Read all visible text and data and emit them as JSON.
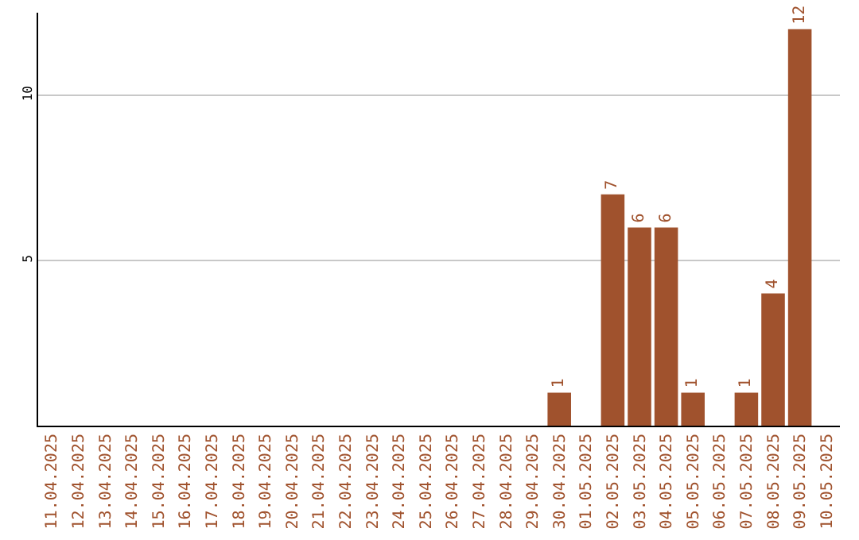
{
  "chart_data": {
    "type": "bar",
    "categories": [
      "11.04.2025",
      "12.04.2025",
      "13.04.2025",
      "14.04.2025",
      "15.04.2025",
      "16.04.2025",
      "17.04.2025",
      "18.04.2025",
      "19.04.2025",
      "20.04.2025",
      "21.04.2025",
      "22.04.2025",
      "23.04.2025",
      "24.04.2025",
      "25.04.2025",
      "26.04.2025",
      "27.04.2025",
      "28.04.2025",
      "29.04.2025",
      "30.04.2025",
      "01.05.2025",
      "02.05.2025",
      "03.05.2025",
      "04.05.2025",
      "05.05.2025",
      "06.05.2025",
      "07.05.2025",
      "08.05.2025",
      "09.05.2025",
      "10.05.2025"
    ],
    "values": [
      0,
      0,
      0,
      0,
      0,
      0,
      0,
      0,
      0,
      0,
      0,
      0,
      0,
      0,
      0,
      0,
      0,
      0,
      0,
      1,
      0,
      7,
      6,
      6,
      1,
      0,
      1,
      4,
      12,
      0
    ],
    "value_labels": [
      null,
      null,
      null,
      null,
      null,
      null,
      null,
      null,
      null,
      null,
      null,
      null,
      null,
      null,
      null,
      null,
      null,
      null,
      null,
      "1",
      null,
      "7",
      "6",
      "6",
      "1",
      null,
      "1",
      "4",
      "12",
      null
    ],
    "color": "#a0522d",
    "ylim": [
      0,
      12.5
    ],
    "yticks": [
      5,
      10
    ],
    "grid": "y",
    "legend": false
  }
}
